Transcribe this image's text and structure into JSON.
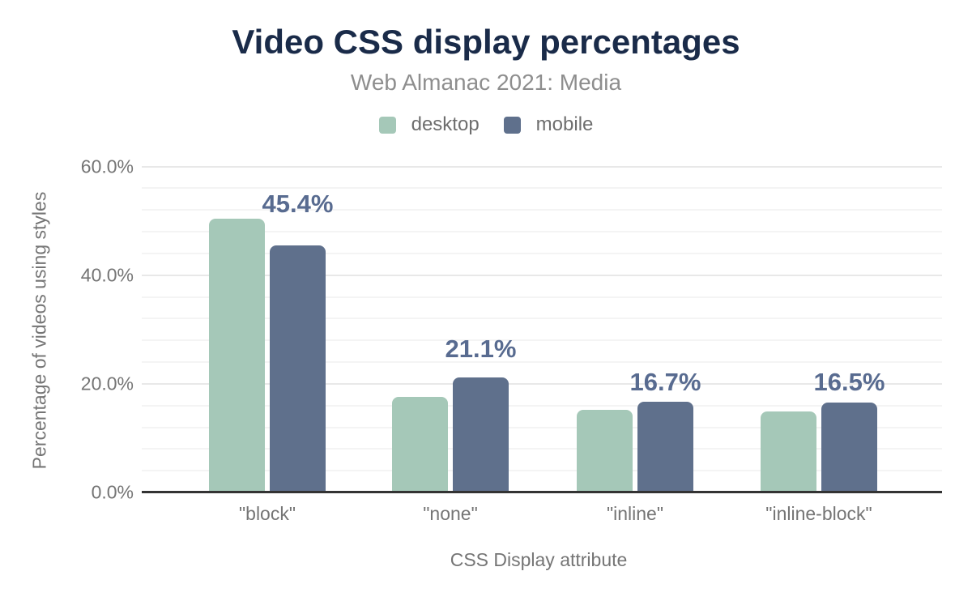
{
  "chart_data": {
    "type": "bar",
    "title": "Video CSS display percentages",
    "subtitle": "Web Almanac 2021: Media",
    "categories": [
      "\"block\"",
      "\"none\"",
      "\"inline\"",
      "\"inline-block\""
    ],
    "series": [
      {
        "name": "desktop",
        "color": "#a5c8b8",
        "values": [
          50.4,
          17.6,
          15.2,
          14.9
        ]
      },
      {
        "name": "mobile",
        "color": "#5f708c",
        "values": [
          45.4,
          21.1,
          16.7,
          16.5
        ],
        "labels": [
          "45.4%",
          "21.1%",
          "16.7%",
          "16.5%"
        ]
      }
    ],
    "xlabel": "CSS Display attribute",
    "ylabel": "Percentage of videos using styles",
    "ylim": [
      0,
      60
    ],
    "yticks": [
      "0.0%",
      "20.0%",
      "40.0%",
      "60.0%"
    ],
    "ytick_values": [
      0,
      20,
      40,
      60
    ],
    "grid": {
      "minor_step": 4,
      "major_step": 20,
      "minor_on": true,
      "major_on": true
    },
    "legend_position": "top"
  },
  "colors": {
    "title": "#1a2b49",
    "subtitle": "#8e8e8e",
    "axis_text": "#757575",
    "legend_text": "#6e6e6e",
    "data_label": "#586b90",
    "grid_minor": "#f4f4f4",
    "grid_major": "#e8e8e8",
    "axis_line": "#333333",
    "background": "#ffffff"
  }
}
